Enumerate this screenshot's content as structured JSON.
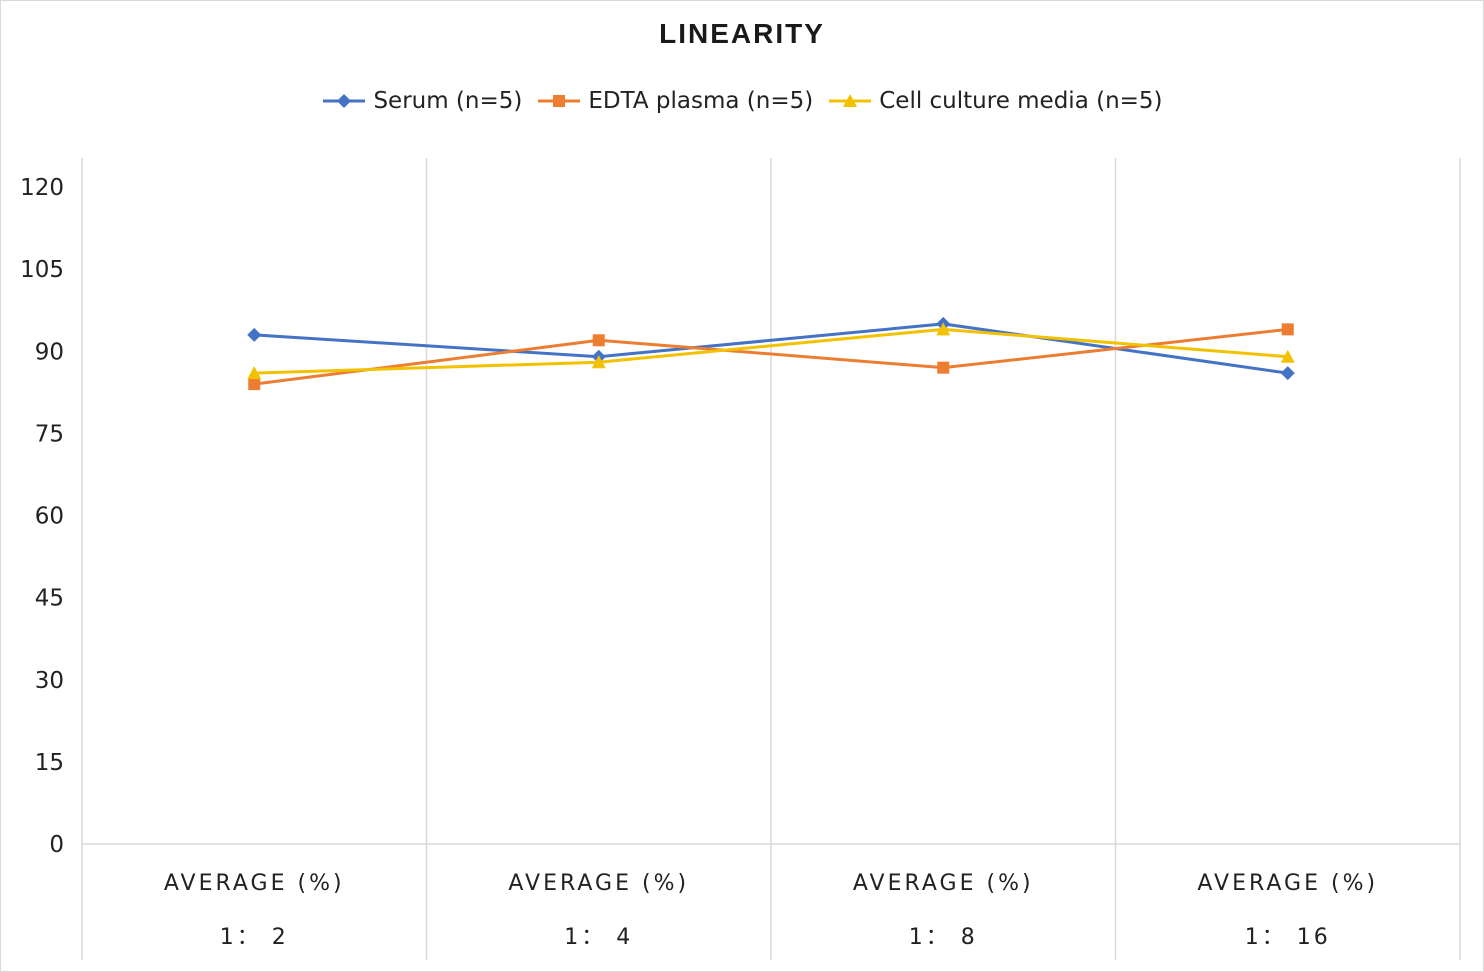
{
  "chart_data": {
    "type": "line",
    "title": "LINEARITY",
    "categories": [
      [
        "AVERAGE (%)",
        "1： 2"
      ],
      [
        "AVERAGE (%)",
        "1： 4"
      ],
      [
        "AVERAGE (%)",
        "1： 8"
      ],
      [
        "AVERAGE (%)",
        "1： 16"
      ]
    ],
    "ylim": [
      0,
      120
    ],
    "yticks": [
      0,
      15,
      30,
      45,
      60,
      75,
      90,
      105,
      120
    ],
    "grid": "vertical category separators",
    "legend_position": "top",
    "series": [
      {
        "name": "Serum (n=5)",
        "color": "#4472c4",
        "marker": "diamond",
        "values": [
          93,
          89,
          95,
          86
        ]
      },
      {
        "name": "EDTA plasma (n=5)",
        "color": "#ed7d31",
        "marker": "square",
        "values": [
          84,
          92,
          87,
          94
        ]
      },
      {
        "name": "Cell culture media (n=5)",
        "color": "#f2c200",
        "marker": "triangle",
        "values": [
          86,
          88,
          94,
          89
        ]
      }
    ]
  }
}
